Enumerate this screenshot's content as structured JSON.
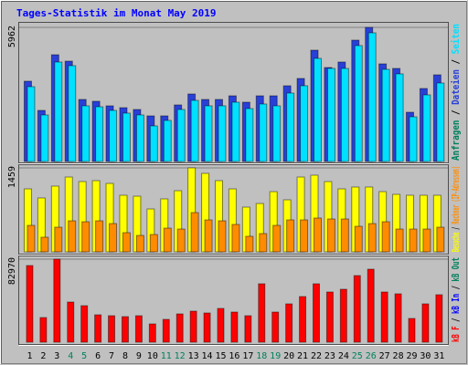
{
  "title": "Tages-Statistik im Monat May 2019",
  "legend_separator": " / ",
  "chart_data": [
    {
      "type": "bar",
      "ylim": [
        0,
        5962
      ],
      "yticks": [
        5962
      ],
      "series": [
        {
          "name": "Anfragen",
          "color": "#00805c"
        },
        {
          "name": "Dateien",
          "color": "#2840d8",
          "values": [
            3569,
            2271,
            4745,
            4461,
            2758,
            2677,
            2474,
            2393,
            2312,
            2028,
            2028,
            2515,
            3001,
            2758,
            2758,
            2920,
            2636,
            2920,
            2920,
            3366,
            3691,
            4948,
            4177,
            4421,
            5394,
            5962,
            4340,
            4137,
            2190,
            3245,
            3853
          ]
        },
        {
          "name": "Seiten",
          "color": "#00e0ff",
          "values": [
            3326,
            2069,
            4421,
            4259,
            2474,
            2433,
            2271,
            2150,
            2069,
            1582,
            1825,
            2312,
            2717,
            2474,
            2474,
            2636,
            2352,
            2555,
            2474,
            3042,
            3366,
            4583,
            4137,
            4137,
            5151,
            5719,
            4096,
            3894,
            1987,
            2961,
            3488
          ]
        }
      ]
    },
    {
      "type": "bar",
      "ylim": [
        0,
        1459
      ],
      "yticks": [
        1459
      ],
      "series": [
        {
          "name": "Besuche",
          "color": "#ffff00",
          "values": [
            1094,
            936,
            1142,
            1300,
            1221,
            1237,
            1189,
            983,
            967,
            745,
            920,
            1062,
            1459,
            1364,
            1237,
            1094,
            777,
            840,
            1046,
            904,
            1300,
            1332,
            1221,
            1094,
            1126,
            1126,
            1046,
            999,
            983,
            983,
            983
          ]
        },
        {
          "name": "Rechner (IP-Adressen)",
          "color": "#ff8c00",
          "values": [
            460,
            254,
            428,
            539,
            523,
            539,
            491,
            333,
            285,
            301,
            412,
            396,
            682,
            555,
            539,
            476,
            270,
            317,
            460,
            555,
            555,
            587,
            571,
            571,
            444,
            491,
            523,
            396,
            396,
            396,
            428
          ]
        }
      ]
    },
    {
      "type": "bar",
      "ylim": [
        0,
        82970
      ],
      "yticks": [
        82970
      ],
      "categories": [
        "1",
        "2",
        "3",
        "4",
        "5",
        "6",
        "7",
        "8",
        "9",
        "10",
        "11",
        "12",
        "13",
        "14",
        "15",
        "16",
        "17",
        "18",
        "19",
        "20",
        "21",
        "22",
        "23",
        "24",
        "25",
        "26",
        "27",
        "28",
        "29",
        "30",
        "31"
      ],
      "category_colors": [
        "#000000",
        "#000000",
        "#000000",
        "#00805c",
        "#00805c",
        "#000000",
        "#000000",
        "#000000",
        "#000000",
        "#000000",
        "#00805c",
        "#00805c",
        "#000000",
        "#000000",
        "#000000",
        "#000000",
        "#000000",
        "#00805c",
        "#00805c",
        "#000000",
        "#000000",
        "#000000",
        "#000000",
        "#000000",
        "#00805c",
        "#00805c",
        "#000000",
        "#000000",
        "#000000",
        "#000000",
        "#000000"
      ],
      "series": [
        {
          "name": "kB F",
          "color": "#ff0000",
          "values": [
            76588,
            24618,
            82970,
            40118,
            36471,
            27354,
            26442,
            25530,
            26442,
            18235,
            22794,
            28265,
            31000,
            29177,
            33735,
            30089,
            26442,
            58353,
            30089,
            38295,
            45589,
            58353,
            50147,
            52883,
            66559,
            72941,
            50147,
            48323,
            23706,
            38295,
            47412
          ]
        },
        {
          "name": "kB In",
          "color": "#0000ff"
        },
        {
          "name": "kB Out",
          "color": "#00805c"
        }
      ]
    }
  ]
}
